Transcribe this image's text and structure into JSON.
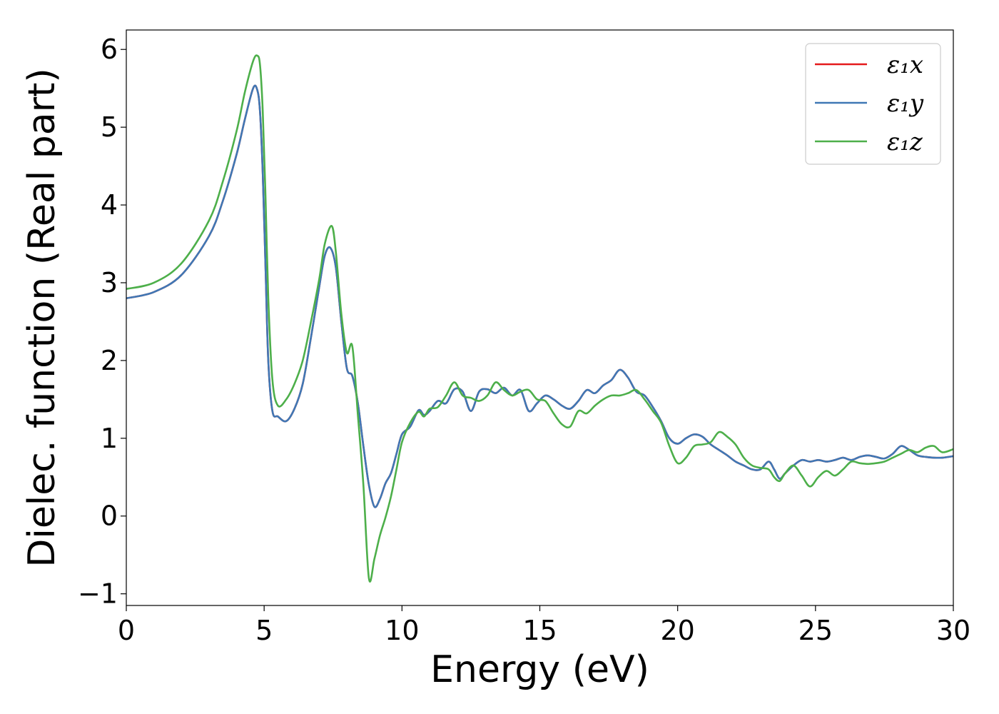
{
  "chart_data": {
    "type": "line",
    "title": "",
    "xlabel": "Energy (eV)",
    "ylabel": "Dielec. function (Real part)",
    "xlim": [
      0,
      30
    ],
    "ylim": [
      -1.15,
      6.25
    ],
    "xticks": [
      0,
      5,
      10,
      15,
      20,
      25,
      30
    ],
    "xtick_labels": [
      "0",
      "5",
      "10",
      "15",
      "20",
      "25",
      "30"
    ],
    "yticks": [
      -1,
      0,
      1,
      2,
      3,
      4,
      5,
      6
    ],
    "ytick_labels": [
      "−1",
      "0",
      "1",
      "2",
      "3",
      "4",
      "5",
      "6"
    ],
    "grid": false,
    "legend_position": "top-right",
    "series": [
      {
        "name": "ε₁x",
        "color": "#e41a1c",
        "x": [
          0,
          1,
          2,
          3,
          3.5,
          4,
          4.3,
          4.6,
          4.75,
          4.85,
          4.95,
          5.05,
          5.15,
          5.3,
          5.5,
          5.8,
          6.1,
          6.4,
          6.7,
          7.0,
          7.2,
          7.4,
          7.6,
          7.8,
          8.0,
          8.2,
          8.4,
          8.6,
          8.8,
          9.0,
          9.2,
          9.4,
          9.6,
          9.8,
          10.0,
          10.3,
          10.6,
          10.8,
          11.0,
          11.3,
          11.6,
          11.9,
          12.2,
          12.5,
          12.8,
          13.1,
          13.4,
          13.7,
          14.0,
          14.3,
          14.6,
          14.9,
          15.2,
          15.5,
          15.8,
          16.1,
          16.4,
          16.7,
          17.0,
          17.3,
          17.6,
          17.9,
          18.2,
          18.5,
          18.8,
          19.1,
          19.4,
          19.7,
          20.0,
          20.3,
          20.6,
          20.9,
          21.2,
          21.5,
          21.8,
          22.1,
          22.4,
          22.7,
          23.0,
          23.3,
          23.5,
          23.7,
          23.9,
          24.2,
          24.5,
          24.8,
          25.1,
          25.4,
          25.7,
          26.0,
          26.3,
          26.6,
          26.9,
          27.2,
          27.5,
          27.8,
          28.1,
          28.4,
          28.7,
          29.0,
          29.3,
          29.6,
          30.0
        ],
        "values": [
          2.8,
          2.88,
          3.1,
          3.6,
          4.05,
          4.65,
          5.1,
          5.5,
          5.48,
          5.2,
          4.4,
          3.2,
          2.0,
          1.35,
          1.28,
          1.22,
          1.38,
          1.7,
          2.3,
          2.95,
          3.35,
          3.45,
          3.2,
          2.5,
          1.9,
          1.8,
          1.45,
          0.9,
          0.4,
          0.12,
          0.22,
          0.42,
          0.55,
          0.8,
          1.05,
          1.15,
          1.36,
          1.3,
          1.35,
          1.48,
          1.45,
          1.63,
          1.6,
          1.35,
          1.6,
          1.63,
          1.58,
          1.65,
          1.55,
          1.62,
          1.35,
          1.45,
          1.55,
          1.5,
          1.42,
          1.38,
          1.48,
          1.62,
          1.58,
          1.68,
          1.75,
          1.88,
          1.78,
          1.6,
          1.55,
          1.4,
          1.22,
          1.0,
          0.93,
          1.0,
          1.05,
          1.02,
          0.92,
          0.85,
          0.78,
          0.7,
          0.65,
          0.6,
          0.6,
          0.7,
          0.6,
          0.48,
          0.55,
          0.65,
          0.72,
          0.7,
          0.72,
          0.7,
          0.72,
          0.75,
          0.72,
          0.76,
          0.78,
          0.76,
          0.74,
          0.8,
          0.9,
          0.85,
          0.78,
          0.76,
          0.75,
          0.75,
          0.77
        ]
      },
      {
        "name": "ε₁y",
        "color": "#3f78b5",
        "x": [
          0,
          1,
          2,
          3,
          3.5,
          4,
          4.3,
          4.6,
          4.75,
          4.85,
          4.95,
          5.05,
          5.15,
          5.3,
          5.5,
          5.8,
          6.1,
          6.4,
          6.7,
          7.0,
          7.2,
          7.4,
          7.6,
          7.8,
          8.0,
          8.2,
          8.4,
          8.6,
          8.8,
          9.0,
          9.2,
          9.4,
          9.6,
          9.8,
          10.0,
          10.3,
          10.6,
          10.8,
          11.0,
          11.3,
          11.6,
          11.9,
          12.2,
          12.5,
          12.8,
          13.1,
          13.4,
          13.7,
          14.0,
          14.3,
          14.6,
          14.9,
          15.2,
          15.5,
          15.8,
          16.1,
          16.4,
          16.7,
          17.0,
          17.3,
          17.6,
          17.9,
          18.2,
          18.5,
          18.8,
          19.1,
          19.4,
          19.7,
          20.0,
          20.3,
          20.6,
          20.9,
          21.2,
          21.5,
          21.8,
          22.1,
          22.4,
          22.7,
          23.0,
          23.3,
          23.5,
          23.7,
          23.9,
          24.2,
          24.5,
          24.8,
          25.1,
          25.4,
          25.7,
          26.0,
          26.3,
          26.6,
          26.9,
          27.2,
          27.5,
          27.8,
          28.1,
          28.4,
          28.7,
          29.0,
          29.3,
          29.6,
          30.0
        ],
        "values": [
          2.8,
          2.88,
          3.1,
          3.6,
          4.05,
          4.65,
          5.1,
          5.5,
          5.48,
          5.2,
          4.4,
          3.2,
          2.0,
          1.35,
          1.28,
          1.22,
          1.38,
          1.7,
          2.3,
          2.95,
          3.35,
          3.45,
          3.2,
          2.5,
          1.9,
          1.8,
          1.45,
          0.9,
          0.4,
          0.12,
          0.22,
          0.42,
          0.55,
          0.8,
          1.05,
          1.15,
          1.36,
          1.3,
          1.35,
          1.48,
          1.45,
          1.63,
          1.6,
          1.35,
          1.6,
          1.63,
          1.58,
          1.65,
          1.55,
          1.62,
          1.35,
          1.45,
          1.55,
          1.5,
          1.42,
          1.38,
          1.48,
          1.62,
          1.58,
          1.68,
          1.75,
          1.88,
          1.78,
          1.6,
          1.55,
          1.4,
          1.22,
          1.0,
          0.93,
          1.0,
          1.05,
          1.02,
          0.92,
          0.85,
          0.78,
          0.7,
          0.65,
          0.6,
          0.6,
          0.7,
          0.6,
          0.48,
          0.55,
          0.65,
          0.72,
          0.7,
          0.72,
          0.7,
          0.72,
          0.75,
          0.72,
          0.76,
          0.78,
          0.76,
          0.74,
          0.8,
          0.9,
          0.85,
          0.78,
          0.76,
          0.75,
          0.75,
          0.77
        ]
      },
      {
        "name": "ε₁z",
        "color": "#4daf4a",
        "x": [
          0,
          1,
          2,
          3,
          3.5,
          4,
          4.3,
          4.6,
          4.75,
          4.85,
          4.95,
          5.05,
          5.15,
          5.3,
          5.5,
          5.8,
          6.1,
          6.4,
          6.7,
          7.0,
          7.2,
          7.45,
          7.6,
          7.8,
          8.0,
          8.2,
          8.4,
          8.6,
          8.8,
          9.0,
          9.2,
          9.4,
          9.6,
          9.8,
          10.0,
          10.3,
          10.6,
          10.8,
          11.0,
          11.3,
          11.6,
          11.9,
          12.2,
          12.5,
          12.8,
          13.1,
          13.4,
          13.7,
          14.0,
          14.3,
          14.6,
          14.9,
          15.2,
          15.5,
          15.8,
          16.1,
          16.4,
          16.7,
          17.0,
          17.3,
          17.6,
          17.9,
          18.2,
          18.5,
          18.8,
          19.1,
          19.4,
          19.7,
          20.0,
          20.3,
          20.6,
          20.9,
          21.2,
          21.5,
          21.8,
          22.1,
          22.4,
          22.7,
          23.0,
          23.3,
          23.5,
          23.7,
          23.9,
          24.2,
          24.5,
          24.8,
          25.1,
          25.4,
          25.7,
          26.0,
          26.3,
          26.6,
          26.9,
          27.2,
          27.5,
          27.8,
          28.1,
          28.4,
          28.7,
          29.0,
          29.3,
          29.6,
          30.0
        ],
        "values": [
          2.92,
          3.0,
          3.25,
          3.8,
          4.3,
          4.95,
          5.45,
          5.85,
          5.92,
          5.8,
          5.2,
          4.1,
          2.8,
          1.75,
          1.42,
          1.5,
          1.7,
          2.0,
          2.5,
          3.05,
          3.5,
          3.73,
          3.4,
          2.6,
          2.1,
          2.18,
          1.3,
          0.4,
          -0.8,
          -0.55,
          -0.25,
          -0.02,
          0.25,
          0.6,
          0.95,
          1.2,
          1.34,
          1.28,
          1.38,
          1.4,
          1.55,
          1.72,
          1.55,
          1.52,
          1.48,
          1.55,
          1.72,
          1.62,
          1.55,
          1.6,
          1.62,
          1.5,
          1.48,
          1.32,
          1.18,
          1.15,
          1.35,
          1.32,
          1.42,
          1.5,
          1.55,
          1.55,
          1.58,
          1.62,
          1.5,
          1.35,
          1.2,
          0.9,
          0.68,
          0.75,
          0.9,
          0.92,
          0.95,
          1.08,
          1.02,
          0.92,
          0.75,
          0.65,
          0.62,
          0.6,
          0.5,
          0.45,
          0.55,
          0.65,
          0.52,
          0.38,
          0.5,
          0.58,
          0.52,
          0.6,
          0.7,
          0.68,
          0.67,
          0.68,
          0.7,
          0.75,
          0.8,
          0.85,
          0.82,
          0.88,
          0.9,
          0.82,
          0.86
        ]
      }
    ]
  }
}
